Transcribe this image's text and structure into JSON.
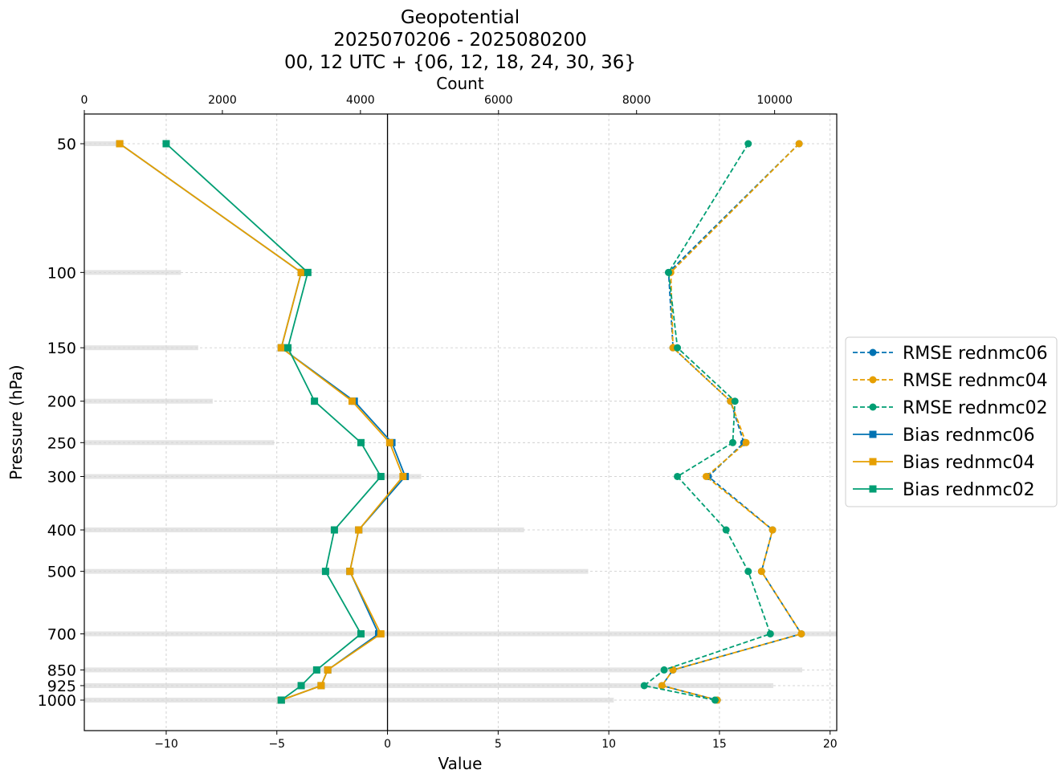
{
  "chart_data": {
    "type": "line",
    "title_lines": [
      "Geopotential",
      "2025070206 - 2025080200",
      "00, 12 UTC + {06, 12, 18, 24, 30, 36}"
    ],
    "xlabel": "Value",
    "ylabel": "Pressure (hPa)",
    "top_xlabel": "Count",
    "xlim": [
      -13.7,
      20.3
    ],
    "x_ticks": [
      -10,
      -5,
      0,
      5,
      10,
      15,
      20
    ],
    "x_tick_labels": [
      "−10",
      "−5",
      "0",
      "5",
      "10",
      "15",
      "20"
    ],
    "count_lim": [
      0,
      10900
    ],
    "count_ticks": [
      0,
      2000,
      4000,
      6000,
      8000,
      10000
    ],
    "count_tick_labels": [
      "0",
      "2000",
      "4000",
      "6000",
      "8000",
      "10000"
    ],
    "pressure_levels": [
      50,
      100,
      150,
      200,
      250,
      300,
      400,
      500,
      700,
      850,
      925,
      1000
    ],
    "pressure_labels": [
      "50",
      "100",
      "150",
      "200",
      "250",
      "300",
      "400",
      "500",
      "700",
      "850",
      "925",
      "1000"
    ],
    "counts": [
      480,
      1400,
      1650,
      1860,
      2750,
      4880,
      6370,
      7300,
      12400,
      10400,
      9980,
      7670
    ],
    "series": [
      {
        "name": "RMSE rednmc06",
        "label": "RMSE rednmc06",
        "kind": "rmse",
        "color": "#0072b2",
        "values": [
          18.6,
          12.7,
          12.9,
          15.5,
          16.1,
          14.5,
          17.4,
          16.9,
          18.7,
          12.9,
          12.4,
          14.9
        ]
      },
      {
        "name": "RMSE rednmc04",
        "label": "RMSE rednmc04",
        "kind": "rmse",
        "color": "#e69f00",
        "values": [
          18.6,
          12.8,
          12.9,
          15.5,
          16.2,
          14.4,
          17.4,
          16.9,
          18.7,
          12.9,
          12.4,
          14.9
        ]
      },
      {
        "name": "RMSE rednmc02",
        "label": "RMSE rednmc02",
        "kind": "rmse",
        "color": "#009e73",
        "values": [
          16.3,
          12.7,
          13.1,
          15.7,
          15.6,
          13.1,
          15.3,
          16.3,
          17.3,
          12.5,
          11.6,
          14.8
        ]
      },
      {
        "name": "Bias rednmc06",
        "label": "Bias rednmc06",
        "kind": "bias",
        "color": "#0072b2",
        "values": [
          -12.1,
          -3.9,
          -4.8,
          -1.5,
          0.2,
          0.8,
          -1.3,
          -1.7,
          -0.4,
          -2.7,
          -3.0,
          -4.8
        ]
      },
      {
        "name": "Bias rednmc04",
        "label": "Bias rednmc04",
        "kind": "bias",
        "color": "#e69f00",
        "values": [
          -12.1,
          -3.9,
          -4.8,
          -1.6,
          0.1,
          0.7,
          -1.3,
          -1.7,
          -0.3,
          -2.7,
          -3.0,
          -4.8
        ]
      },
      {
        "name": "Bias rednmc02",
        "label": "Bias rednmc02",
        "kind": "bias",
        "color": "#009e73",
        "values": [
          -10.0,
          -3.6,
          -4.5,
          -3.3,
          -1.2,
          -0.3,
          -2.4,
          -2.8,
          -1.2,
          -3.2,
          -3.9,
          -4.8
        ]
      }
    ],
    "legend_position": "right",
    "grid": true
  }
}
